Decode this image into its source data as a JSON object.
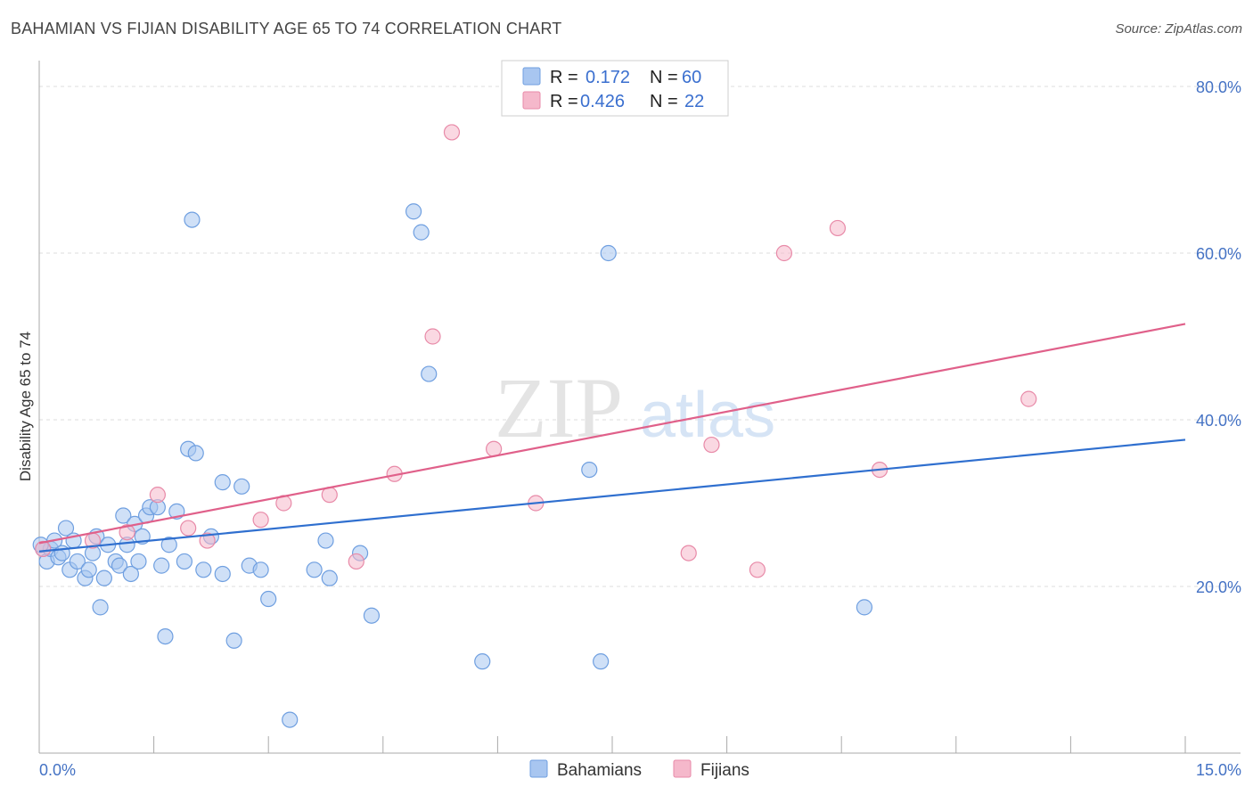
{
  "title": "BAHAMIAN VS FIJIAN DISABILITY AGE 65 TO 74 CORRELATION CHART",
  "source": "Source: ZipAtlas.com",
  "watermark": {
    "zip": "ZIP",
    "atlas": "atlas"
  },
  "colors": {
    "blue_fill": "#a8c6f0",
    "blue_stroke": "#6f9fe0",
    "blue_line": "#2f6fcf",
    "pink_fill": "#f5b8cb",
    "pink_stroke": "#e88aa8",
    "pink_line": "#e0608a",
    "grid": "#dddddd",
    "axis_label": "#4472c4"
  },
  "legend": {
    "rows": [
      {
        "r_label": "R =",
        "r_value": "0.172",
        "n_label": "N =",
        "n_value": "60",
        "color": "blue"
      },
      {
        "r_label": "R =",
        "r_value": "0.426",
        "n_label": "N =",
        "n_value": "22",
        "color": "pink"
      }
    ]
  },
  "bottom_legend": [
    {
      "label": "Bahamians",
      "color": "blue"
    },
    {
      "label": "Fijians",
      "color": "pink"
    }
  ],
  "chart_data": {
    "type": "scatter",
    "title": "BAHAMIAN VS FIJIAN DISABILITY AGE 65 TO 74 CORRELATION CHART",
    "xlabel": "",
    "ylabel": "Disability Age 65 to 74",
    "xlim": [
      0,
      15
    ],
    "ylim": [
      0,
      80
    ],
    "x_tick_labels": [
      "0.0%",
      "15.0%"
    ],
    "y_ticks": [
      20,
      40,
      60,
      80
    ],
    "y_tick_labels": [
      "20.0%",
      "40.0%",
      "60.0%",
      "80.0%"
    ],
    "grid": true,
    "series": [
      {
        "name": "Bahamians",
        "color": "blue",
        "r": 0.172,
        "n": 60,
        "trend": {
          "x": [
            0,
            15
          ],
          "y": [
            24.2,
            37.6
          ]
        },
        "points": [
          [
            0.05,
            24.5
          ],
          [
            0.1,
            23.0
          ],
          [
            0.15,
            24.5
          ],
          [
            0.2,
            25.5
          ],
          [
            0.25,
            23.5
          ],
          [
            0.3,
            24.0
          ],
          [
            0.35,
            27.0
          ],
          [
            0.4,
            22.0
          ],
          [
            0.45,
            25.5
          ],
          [
            0.5,
            23.0
          ],
          [
            0.6,
            21.0
          ],
          [
            0.65,
            22.0
          ],
          [
            0.7,
            24.0
          ],
          [
            0.75,
            26.0
          ],
          [
            0.8,
            17.5
          ],
          [
            0.85,
            21.0
          ],
          [
            0.9,
            25.0
          ],
          [
            1.0,
            23.0
          ],
          [
            1.05,
            22.5
          ],
          [
            1.1,
            28.5
          ],
          [
            1.15,
            25.0
          ],
          [
            1.2,
            21.5
          ],
          [
            1.25,
            27.5
          ],
          [
            1.3,
            23.0
          ],
          [
            1.35,
            26.0
          ],
          [
            1.4,
            28.5
          ],
          [
            1.45,
            29.5
          ],
          [
            1.55,
            29.5
          ],
          [
            1.6,
            22.5
          ],
          [
            1.65,
            14.0
          ],
          [
            1.7,
            25.0
          ],
          [
            1.8,
            29.0
          ],
          [
            1.9,
            23.0
          ],
          [
            1.95,
            36.5
          ],
          [
            2.0,
            64.0
          ],
          [
            2.05,
            36.0
          ],
          [
            2.15,
            22.0
          ],
          [
            2.25,
            26.0
          ],
          [
            2.4,
            21.5
          ],
          [
            2.4,
            32.5
          ],
          [
            2.55,
            13.5
          ],
          [
            2.65,
            32.0
          ],
          [
            2.75,
            22.5
          ],
          [
            2.9,
            22.0
          ],
          [
            3.0,
            18.5
          ],
          [
            3.28,
            4.0
          ],
          [
            3.6,
            22.0
          ],
          [
            3.75,
            25.5
          ],
          [
            3.8,
            21.0
          ],
          [
            4.2,
            24.0
          ],
          [
            4.35,
            16.5
          ],
          [
            4.9,
            65.0
          ],
          [
            5.0,
            62.5
          ],
          [
            5.1,
            45.5
          ],
          [
            5.8,
            11.0
          ],
          [
            7.2,
            34.0
          ],
          [
            7.35,
            11.0
          ],
          [
            7.45,
            60.0
          ],
          [
            10.8,
            17.5
          ],
          [
            0.02,
            25.0
          ]
        ]
      },
      {
        "name": "Fijians",
        "color": "pink",
        "r": 0.426,
        "n": 22,
        "trend": {
          "x": [
            0,
            15
          ],
          "y": [
            25.2,
            51.5
          ]
        },
        "points": [
          [
            0.05,
            24.5
          ],
          [
            0.7,
            25.5
          ],
          [
            1.15,
            26.5
          ],
          [
            1.55,
            31.0
          ],
          [
            1.95,
            27.0
          ],
          [
            2.2,
            25.5
          ],
          [
            2.9,
            28.0
          ],
          [
            3.2,
            30.0
          ],
          [
            3.8,
            31.0
          ],
          [
            4.15,
            23.0
          ],
          [
            4.65,
            33.5
          ],
          [
            5.15,
            50.0
          ],
          [
            5.4,
            74.5
          ],
          [
            5.95,
            36.5
          ],
          [
            6.5,
            30.0
          ],
          [
            8.5,
            24.0
          ],
          [
            8.8,
            37.0
          ],
          [
            9.4,
            22.0
          ],
          [
            9.75,
            60.0
          ],
          [
            10.45,
            63.0
          ],
          [
            11.0,
            34.0
          ],
          [
            12.95,
            42.5
          ]
        ]
      }
    ]
  }
}
